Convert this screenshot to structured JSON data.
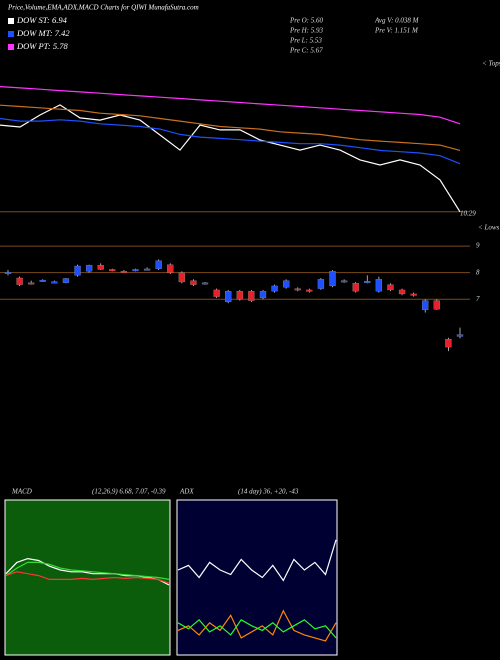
{
  "chart_data": [
    {
      "type": "candlestick",
      "title": "Price,Volume,EMA,ADX,MACD Charts for QIWI MunafaSutra.com",
      "dow": [
        {
          "label": "DOW ST: 6.94",
          "color": "#ffffff"
        },
        {
          "label": "DOW MT: 7.42",
          "color": "#1e50ff"
        },
        {
          "label": "DOW PT: 5.78",
          "color": "#ff33ff"
        }
      ],
      "stats": [
        "Pre O: 5.60",
        "Pre H: 5.93",
        "Pre L: 5.53",
        "Pre C: 5.67",
        "Avg V: 0.038 M",
        "Pre V: 1.151 M"
      ],
      "marker_labels": [
        "< Tops",
        "< Lows"
      ],
      "up_color": "#1e50ff",
      "down_color": "#e8202a",
      "open": [
        8.0,
        7.8,
        7.62,
        7.68,
        7.65,
        7.62,
        7.9,
        8.05,
        8.28,
        8.12,
        8.05,
        8.1,
        8.12,
        8.15,
        8.3,
        8.0,
        7.7,
        7.6,
        7.35,
        6.9,
        7.3,
        7.3,
        7.05,
        7.3,
        7.45,
        7.4,
        7.35,
        7.4,
        7.5,
        7.68,
        7.6,
        7.65,
        7.3,
        7.55,
        7.35,
        7.2,
        6.6,
        6.95,
        5.5,
        5.6
      ],
      "high": [
        8.1,
        7.85,
        7.7,
        7.75,
        7.7,
        7.8,
        8.3,
        8.3,
        8.35,
        8.15,
        8.1,
        8.15,
        8.2,
        8.5,
        8.35,
        8.05,
        7.75,
        7.65,
        7.4,
        7.35,
        7.35,
        7.35,
        7.35,
        7.55,
        7.75,
        7.45,
        7.4,
        7.8,
        8.1,
        7.75,
        7.65,
        7.9,
        7.85,
        7.6,
        7.4,
        7.25,
        7.0,
        7.0,
        5.55,
        5.93
      ],
      "low": [
        7.9,
        7.5,
        7.55,
        7.65,
        7.6,
        7.6,
        7.85,
        8.0,
        8.1,
        8.05,
        7.98,
        8.05,
        8.08,
        8.1,
        7.95,
        7.6,
        7.5,
        7.55,
        7.05,
        6.85,
        6.95,
        6.9,
        7.0,
        7.25,
        7.4,
        7.3,
        7.25,
        7.35,
        7.45,
        7.62,
        7.25,
        7.6,
        7.25,
        7.3,
        7.15,
        7.1,
        6.5,
        6.6,
        5.05,
        5.53
      ],
      "close": [
        8.02,
        7.55,
        7.6,
        7.72,
        7.66,
        7.78,
        8.25,
        8.28,
        8.12,
        8.1,
        8.04,
        8.12,
        8.14,
        8.45,
        8.0,
        7.65,
        7.55,
        7.62,
        7.1,
        7.3,
        7.0,
        6.95,
        7.3,
        7.5,
        7.7,
        7.38,
        7.32,
        7.75,
        8.05,
        7.7,
        7.3,
        7.68,
        7.75,
        7.35,
        7.2,
        7.18,
        6.95,
        6.62,
        5.2,
        5.67
      ],
      "series": [
        {
          "color": "#ffffff",
          "values": [
            13.55,
            13.48,
            13.93,
            14.31,
            13.82,
            13.74,
            13.93,
            13.74,
            13.18,
            12.61,
            13.55,
            13.37,
            13.37,
            12.99,
            12.8,
            12.61,
            12.8,
            12.61,
            12.24,
            12.05,
            12.24,
            12.05,
            11.49,
            10.29
          ]
        },
        {
          "color": "#1e50ff",
          "values": [
            13.8,
            13.7,
            13.7,
            13.75,
            13.7,
            13.6,
            13.55,
            13.5,
            13.4,
            13.2,
            13.1,
            13.05,
            13.0,
            12.95,
            12.9,
            12.85,
            12.85,
            12.8,
            12.7,
            12.6,
            12.55,
            12.5,
            12.4,
            12.1
          ]
        },
        {
          "color": "#ff33ff",
          "values": [
            15.0,
            14.95,
            14.9,
            14.85,
            14.8,
            14.75,
            14.7,
            14.65,
            14.6,
            14.55,
            14.5,
            14.45,
            14.4,
            14.35,
            14.3,
            14.25,
            14.2,
            14.15,
            14.1,
            14.05,
            14.0,
            13.95,
            13.85,
            13.6
          ]
        },
        {
          "color": "#c87020",
          "values": [
            14.3,
            14.25,
            14.2,
            14.15,
            14.1,
            14.0,
            13.95,
            13.9,
            13.8,
            13.7,
            13.6,
            13.5,
            13.45,
            13.4,
            13.3,
            13.25,
            13.2,
            13.1,
            13.0,
            12.95,
            12.9,
            12.85,
            12.8,
            12.6
          ]
        }
      ],
      "level": {
        "value": 10.29,
        "label": "10.29"
      },
      "ylim": [
        0.2,
        16.0
      ],
      "yticks": [
        7,
        8,
        9
      ],
      "grid_color": "#7a4a1a"
    },
    {
      "type": "macd",
      "title": "MACD",
      "subtitle": "(12,26,9) 6.68, 7.07, -0.39",
      "background": "#0b5d0b",
      "ylim": [
        -4,
        4
      ],
      "series": [
        {
          "color": "#ffffff",
          "values": [
            0.2,
            0.8,
            1.0,
            0.9,
            0.6,
            0.4,
            0.3,
            0.3,
            0.2,
            0.2,
            0.2,
            0.1,
            0.1,
            0.0,
            -0.1,
            -0.4
          ]
        },
        {
          "color": "#33dd33",
          "values": [
            0.1,
            0.5,
            0.8,
            0.8,
            0.7,
            0.5,
            0.4,
            0.35,
            0.3,
            0.25,
            0.2,
            0.15,
            0.1,
            0.05,
            0.0,
            -0.1
          ]
        },
        {
          "color": "#ff3333",
          "values": [
            0.1,
            0.3,
            0.2,
            0.1,
            -0.1,
            -0.1,
            -0.1,
            -0.05,
            -0.1,
            -0.05,
            0.0,
            -0.05,
            0.0,
            -0.05,
            -0.1,
            -0.3
          ]
        }
      ]
    },
    {
      "type": "adx",
      "title": "ADX",
      "subtitle": "(14 day) 36, +20, -43",
      "background": "#000033",
      "ylim": [
        0,
        100
      ],
      "series": [
        {
          "color": "#ffffff",
          "values": [
            55,
            58,
            50,
            60,
            55,
            52,
            62,
            55,
            50,
            58,
            48,
            62,
            55,
            60,
            52,
            75
          ]
        },
        {
          "color": "#ff8800",
          "values": [
            15,
            18,
            12,
            20,
            15,
            25,
            10,
            14,
            18,
            12,
            28,
            15,
            12,
            10,
            8,
            20
          ]
        },
        {
          "color": "#22ff22",
          "values": [
            20,
            16,
            22,
            14,
            18,
            12,
            22,
            18,
            15,
            20,
            14,
            18,
            22,
            16,
            18,
            10
          ]
        }
      ]
    }
  ]
}
